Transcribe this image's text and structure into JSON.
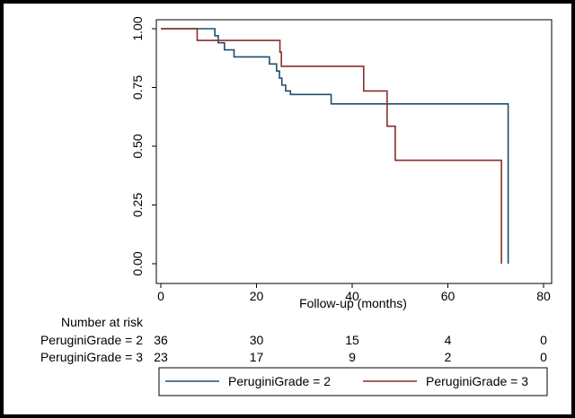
{
  "chart_data": {
    "type": "line",
    "xlabel": "Follow-up (months)",
    "ylabel": "",
    "xlim": [
      0,
      80
    ],
    "ylim": [
      0,
      1
    ],
    "x_ticks": [
      0,
      20,
      40,
      60,
      80
    ],
    "x_tick_labels": [
      "0",
      "20",
      "40",
      "60",
      "80"
    ],
    "y_ticks": [
      0,
      0.25,
      0.5,
      0.75,
      1
    ],
    "y_tick_labels": [
      "0.00",
      "0.25",
      "0.50",
      "0.75",
      "1.00"
    ],
    "grid": false,
    "legend_position": "bottom",
    "series": [
      {
        "name": "PeruginiGrade = 2",
        "color": "#1f4e6e",
        "x": [
          0,
          10.5,
          11.3,
          12,
          13.3,
          15.3,
          22.7,
          24.2,
          24.8,
          25.3,
          26.1,
          27.1,
          35.6,
          72.6,
          72.6
        ],
        "y": [
          1.0,
          1.0,
          0.97,
          0.94,
          0.91,
          0.88,
          0.85,
          0.82,
          0.79,
          0.76,
          0.735,
          0.72,
          0.68,
          0.68,
          0.0
        ]
      },
      {
        "name": "PeruginiGrade = 3",
        "color": "#8b2d2d",
        "x": [
          0,
          7.6,
          24.9,
          25.2,
          42.4,
          47.3,
          49.0,
          71.2,
          71.2
        ],
        "y": [
          1.0,
          0.95,
          0.9,
          0.84,
          0.735,
          0.585,
          0.44,
          0.44,
          0.0
        ]
      }
    ],
    "risk_table": {
      "title": "Number at risk",
      "times": [
        0,
        20,
        40,
        60,
        80
      ],
      "rows": [
        {
          "label": "PeruginiGrade = 2",
          "values": [
            "36",
            "30",
            "15",
            "4",
            "0"
          ]
        },
        {
          "label": "PeruginiGrade = 3",
          "values": [
            "23",
            "17",
            "9",
            "2",
            "0"
          ]
        }
      ]
    }
  }
}
